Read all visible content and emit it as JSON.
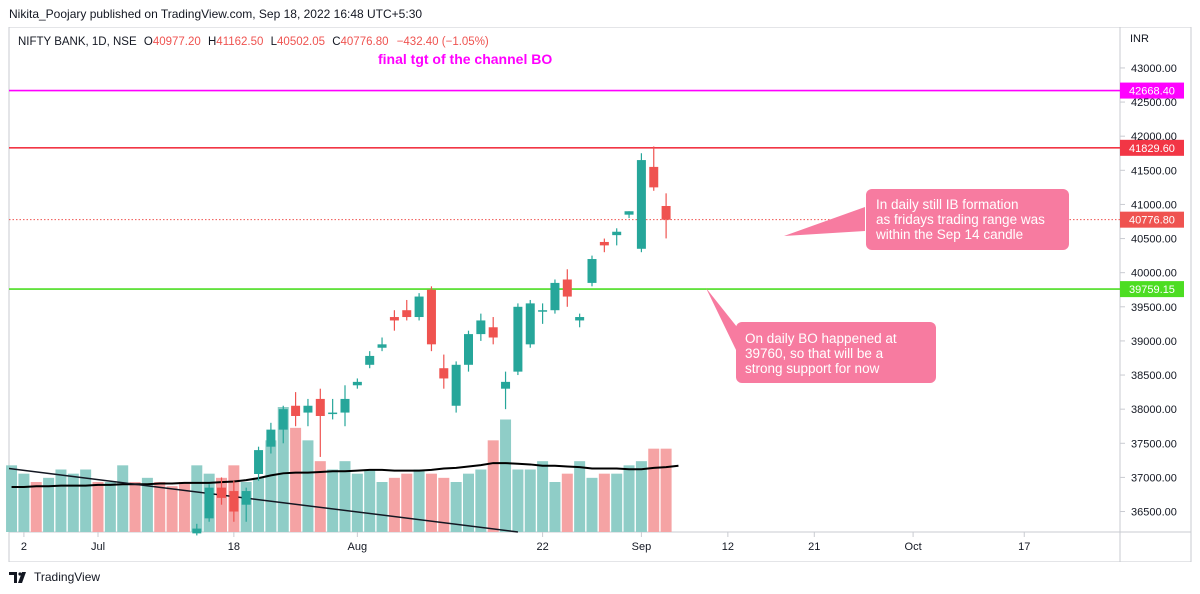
{
  "publisher": "Nikita_Poojary published on TradingView.com, Sep 18, 2022 16:48 UTC+5:30",
  "footer_brand": "TradingView",
  "legend": {
    "symbol": "NIFTY BANK, 1D, NSE",
    "o_label": "O",
    "o_value": "40977.20",
    "h_label": "H",
    "h_value": "41162.50",
    "l_label": "L",
    "l_value": "40502.05",
    "c_label": "C",
    "c_value": "40776.80",
    "change": "−432.40 (−1.05%)"
  },
  "annotations": {
    "final_target": "final tgt of the channel BO",
    "ib_note": [
      "In daily still IB formation",
      "as fridays trading range was",
      "within the Sep 14 candle"
    ],
    "bo_note": [
      "On daily BO happened at",
      "39760, so that will be a",
      "strong support for now"
    ]
  },
  "colors": {
    "up": "#26a69a",
    "down": "#ef5350",
    "vol_up": "#8fcdc7",
    "vol_down": "#f5a3a4",
    "magenta": "#ff00ff",
    "red_line": "#f23645",
    "green_line": "#4cdd22",
    "note_bg": "#f77ba0"
  },
  "chart_data": {
    "type": "candlestick",
    "symbol": "NIFTY BANK",
    "interval": "1D",
    "exchange": "NSE",
    "currency": "INR",
    "ylim": [
      36200,
      43600
    ],
    "yticks": [
      36500,
      37000,
      37500,
      38000,
      38500,
      39000,
      39500,
      40000,
      40500,
      41000,
      41500,
      42000,
      42500,
      43000
    ],
    "ytick_labels": [
      "36500.00",
      "37000.00",
      "37500.00",
      "38000.00",
      "38500.00",
      "39000.00",
      "39500.00",
      "40000.00",
      "40500.00",
      "41000.00",
      "41500.00",
      "42000.00",
      "42500.00",
      "43000.00"
    ],
    "xtick_labels": [
      {
        "label": "2",
        "i": -6
      },
      {
        "label": "Jul",
        "i": 0
      },
      {
        "label": "18",
        "i": 11
      },
      {
        "label": "Aug",
        "i": 21
      },
      {
        "label": "22",
        "i": 36
      },
      {
        "label": "Sep",
        "i": 44
      },
      {
        "label": "12",
        "i": 51
      },
      {
        "label": "21",
        "i": 58
      },
      {
        "label": "Oct",
        "i": 66
      },
      {
        "label": "17",
        "i": 75
      }
    ],
    "first_candle_index": 15,
    "candles": [
      {
        "date": "Jul 22",
        "o": 36180,
        "h": 36320,
        "l": 36150,
        "c": 36250
      },
      {
        "date": "Jul 25",
        "o": 36400,
        "h": 36900,
        "l": 36350,
        "c": 36850
      },
      {
        "date": "Jul 26",
        "o": 36850,
        "h": 37000,
        "l": 36600,
        "c": 36700
      },
      {
        "date": "Jul 27",
        "o": 36800,
        "h": 36950,
        "l": 36350,
        "c": 36500
      },
      {
        "date": "Jul 28",
        "o": 36600,
        "h": 36850,
        "l": 36350,
        "c": 36800
      },
      {
        "date": "Jul 29",
        "o": 37050,
        "h": 37450,
        "l": 36950,
        "c": 37400
      },
      {
        "date": "Aug 01",
        "o": 37450,
        "h": 37800,
        "l": 37350,
        "c": 37700
      },
      {
        "date": "Aug 02",
        "o": 37700,
        "h": 38050,
        "l": 37500,
        "c": 38000
      },
      {
        "date": "Aug 03",
        "o": 38050,
        "h": 38250,
        "l": 37750,
        "c": 37900
      },
      {
        "date": "Aug 04",
        "o": 37950,
        "h": 38150,
        "l": 37750,
        "c": 38050
      },
      {
        "date": "Aug 05",
        "o": 38150,
        "h": 38300,
        "l": 37300,
        "c": 37900
      },
      {
        "date": "Aug 08",
        "o": 37950,
        "h": 38150,
        "l": 37850,
        "c": 37950
      },
      {
        "date": "Aug 10",
        "o": 37950,
        "h": 38350,
        "l": 37750,
        "c": 38150
      },
      {
        "date": "Aug 11",
        "o": 38350,
        "h": 38450,
        "l": 38300,
        "c": 38400
      },
      {
        "date": "Aug 12",
        "o": 38650,
        "h": 38850,
        "l": 38600,
        "c": 38780
      },
      {
        "date": "Aug 16",
        "o": 38900,
        "h": 39050,
        "l": 38850,
        "c": 38950
      },
      {
        "date": "Aug 17",
        "o": 39350,
        "h": 39450,
        "l": 39150,
        "c": 39300
      },
      {
        "date": "Aug 18",
        "o": 39450,
        "h": 39600,
        "l": 39300,
        "c": 39350
      },
      {
        "date": "Aug 19",
        "o": 39350,
        "h": 39700,
        "l": 39300,
        "c": 39650
      },
      {
        "date": "Aug 22",
        "o": 39750,
        "h": 39800,
        "l": 38850,
        "c": 38950
      },
      {
        "date": "Aug 23",
        "o": 38600,
        "h": 38800,
        "l": 38300,
        "c": 38450
      },
      {
        "date": "Aug 24",
        "o": 38050,
        "h": 38700,
        "l": 37950,
        "c": 38650
      },
      {
        "date": "Aug 25",
        "o": 38650,
        "h": 39150,
        "l": 38550,
        "c": 39100
      },
      {
        "date": "Aug 26",
        "o": 39100,
        "h": 39400,
        "l": 39000,
        "c": 39300
      },
      {
        "date": "Aug 29",
        "o": 39200,
        "h": 39350,
        "l": 38950,
        "c": 39050
      },
      {
        "date": "Aug 30",
        "o": 38300,
        "h": 38550,
        "l": 38000,
        "c": 38400
      },
      {
        "date": "Sep 01",
        "o": 38550,
        "h": 39550,
        "l": 38500,
        "c": 39500
      },
      {
        "date": "Sep 02",
        "o": 38950,
        "h": 39600,
        "l": 38900,
        "c": 39550
      },
      {
        "date": "Sep 05",
        "o": 39450,
        "h": 39550,
        "l": 39250,
        "c": 39450
      },
      {
        "date": "Sep 06",
        "o": 39450,
        "h": 39900,
        "l": 39400,
        "c": 39850
      },
      {
        "date": "Sep 07",
        "o": 39900,
        "h": 40050,
        "l": 39500,
        "c": 39650
      },
      {
        "date": "Sep 08",
        "o": 39300,
        "h": 39400,
        "l": 39200,
        "c": 39350
      },
      {
        "date": "Sep 09",
        "o": 39850,
        "h": 40250,
        "l": 39800,
        "c": 40200
      },
      {
        "date": "Sep 12",
        "o": 40450,
        "h": 40500,
        "l": 40300,
        "c": 40400
      },
      {
        "date": "Sep 13",
        "o": 40550,
        "h": 40650,
        "l": 40400,
        "c": 40600
      },
      {
        "date": "Sep 14",
        "o": 40850,
        "h": 40900,
        "l": 40800,
        "c": 40900
      },
      {
        "date": "Sep 14b",
        "o": 40350,
        "h": 41750,
        "l": 40300,
        "c": 41650
      },
      {
        "date": "Sep 15",
        "o": 41550,
        "h": 41850,
        "l": 41200,
        "c": 41250
      },
      {
        "date": "Sep 16",
        "o": 40977.2,
        "h": 41162.5,
        "l": 40502.05,
        "c": 40776.8
      }
    ],
    "early_volume": [
      {
        "i": 0,
        "h": 0.16,
        "up": true
      },
      {
        "i": 1,
        "h": 0.14,
        "up": true
      },
      {
        "i": 2,
        "h": 0.12,
        "up": false
      },
      {
        "i": 3,
        "h": 0.13,
        "up": true
      },
      {
        "i": 4,
        "h": 0.15,
        "up": true
      },
      {
        "i": 5,
        "h": 0.14,
        "up": true
      },
      {
        "i": 6,
        "h": 0.15,
        "up": true
      },
      {
        "i": 7,
        "h": 0.12,
        "up": false
      },
      {
        "i": 8,
        "h": 0.12,
        "up": true
      },
      {
        "i": 9,
        "h": 0.16,
        "up": true
      },
      {
        "i": 10,
        "h": 0.12,
        "up": false
      },
      {
        "i": 11,
        "h": 0.13,
        "up": true
      },
      {
        "i": 12,
        "h": 0.12,
        "up": false
      },
      {
        "i": 13,
        "h": 0.11,
        "up": false
      },
      {
        "i": 14,
        "h": 0.12,
        "up": false
      }
    ],
    "volume": [
      0.16,
      0.14,
      0.13,
      0.16,
      0.12,
      0.13,
      0.22,
      0.3,
      0.25,
      0.22,
      0.17,
      0.15,
      0.17,
      0.14,
      0.15,
      0.12,
      0.13,
      0.14,
      0.15,
      0.14,
      0.13,
      0.12,
      0.14,
      0.15,
      0.22,
      0.27,
      0.15,
      0.15,
      0.17,
      0.12,
      0.14,
      0.17,
      0.13,
      0.14,
      0.14,
      0.16,
      0.17,
      0.2,
      0.2
    ],
    "ma": [
      36860,
      36860,
      36870,
      36870,
      36880,
      36880,
      36880,
      36890,
      36890,
      36900,
      36900,
      36900,
      36910,
      36910,
      36920,
      36920,
      36920,
      36930,
      36940,
      36960,
      36990,
      37030,
      37060,
      37070,
      37070,
      37080,
      37090,
      37090,
      37100,
      37110,
      37110,
      37100,
      37100,
      37100,
      37110,
      37130,
      37140,
      37160,
      37180,
      37210,
      37210,
      37200,
      37190,
      37170,
      37170,
      37160,
      37150,
      37130,
      37130,
      37130,
      37120,
      37120,
      37140,
      37150,
      37170
    ],
    "levels": [
      {
        "name": "final target",
        "value": 42668.4,
        "label": "42668.40",
        "color": "#ff00ff"
      },
      {
        "name": "resistance",
        "value": 41829.6,
        "label": "41829.60",
        "color": "#f23645"
      },
      {
        "name": "last close",
        "value": 40776.8,
        "label": "40776.80",
        "color": "#ef5350",
        "dotted": true
      },
      {
        "name": "breakout support",
        "value": 39759.15,
        "label": "39759.15",
        "color": "#4cdd22"
      }
    ],
    "y_axis_unit": "INR"
  }
}
